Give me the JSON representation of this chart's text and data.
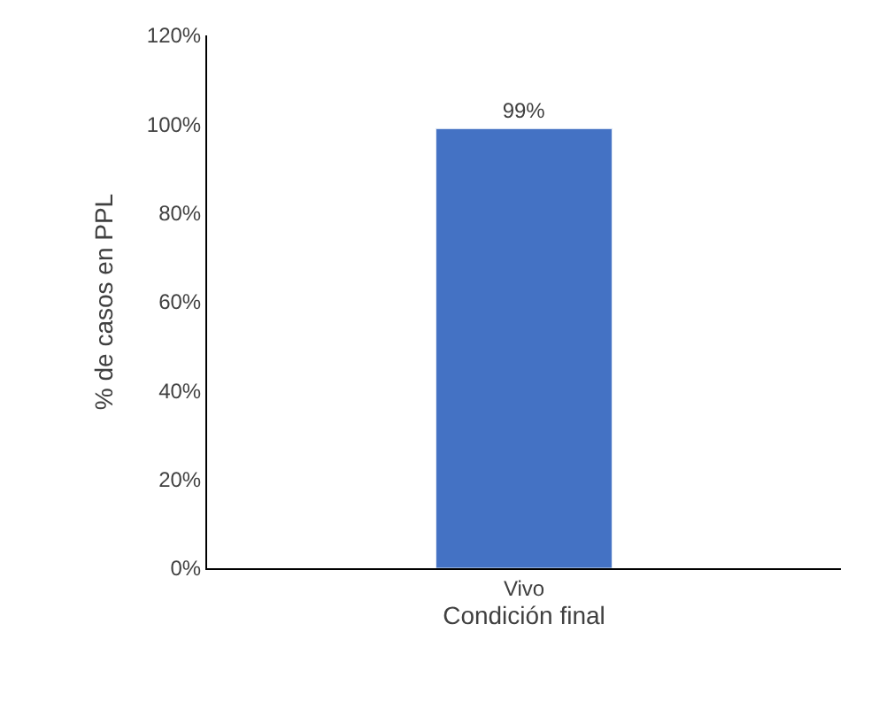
{
  "chart_data": {
    "type": "bar",
    "categories": [
      "Vivo"
    ],
    "xlabel": "Condición final",
    "ylabel": "% de casos en PPL",
    "series": [
      {
        "color": "#4472c4",
        "values": [
          99
        ],
        "value_labels": [
          "99%"
        ]
      }
    ],
    "ylim": [
      0,
      120
    ],
    "yticks": [
      {
        "value": 0,
        "label": "0%"
      },
      {
        "value": 20,
        "label": "20%"
      },
      {
        "value": 40,
        "label": "40%"
      },
      {
        "value": 60,
        "label": "60%"
      },
      {
        "value": 80,
        "label": "80%"
      },
      {
        "value": 100,
        "label": "100%"
      },
      {
        "value": 120,
        "label": "120%"
      }
    ]
  }
}
